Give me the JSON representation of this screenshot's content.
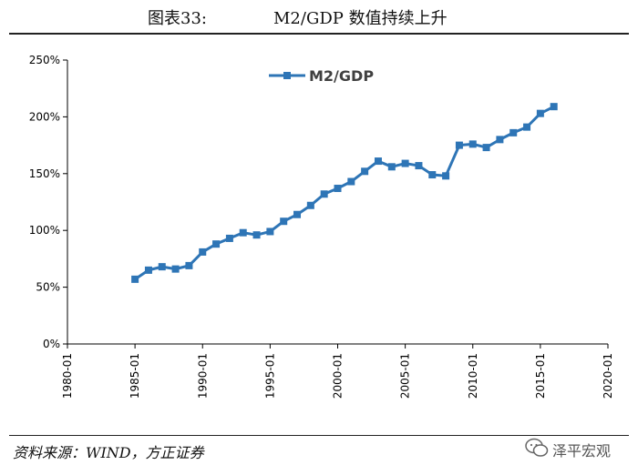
{
  "header": {
    "figure_label": "图表33:",
    "figure_title": "M2/GDP 数值持续上升"
  },
  "footer": {
    "source": "资料来源：WIND，方正证券",
    "watermark": "泽平宏观"
  },
  "colors": {
    "series": "#2E75B6",
    "axis": "#000000"
  },
  "chart_data": {
    "type": "line",
    "title": "",
    "xlabel": "",
    "ylabel": "",
    "x_ticks": [
      "1980-01",
      "1985-01",
      "1990-01",
      "1995-01",
      "2000-01",
      "2005-01",
      "2010-01",
      "2015-01",
      "2020-01"
    ],
    "x_range": [
      1980,
      2020
    ],
    "y_ticks": [
      "0%",
      "50%",
      "100%",
      "150%",
      "200%",
      "250%"
    ],
    "ylim": [
      0,
      250
    ],
    "legend": {
      "position": "top-left"
    },
    "grid": false,
    "series": [
      {
        "name": "M2/GDP",
        "x": [
          1985,
          1986,
          1987,
          1988,
          1989,
          1990,
          1991,
          1992,
          1993,
          1994,
          1995,
          1996,
          1997,
          1998,
          1999,
          2000,
          2001,
          2002,
          2003,
          2004,
          2005,
          2006,
          2007,
          2008,
          2009,
          2010,
          2011,
          2012,
          2013,
          2014,
          2015,
          2016
        ],
        "values": [
          57,
          65,
          68,
          66,
          69,
          81,
          88,
          93,
          98,
          96,
          99,
          108,
          114,
          122,
          132,
          137,
          143,
          152,
          161,
          156,
          159,
          157,
          149,
          148,
          175,
          176,
          173,
          180,
          186,
          191,
          203,
          209
        ]
      }
    ]
  }
}
